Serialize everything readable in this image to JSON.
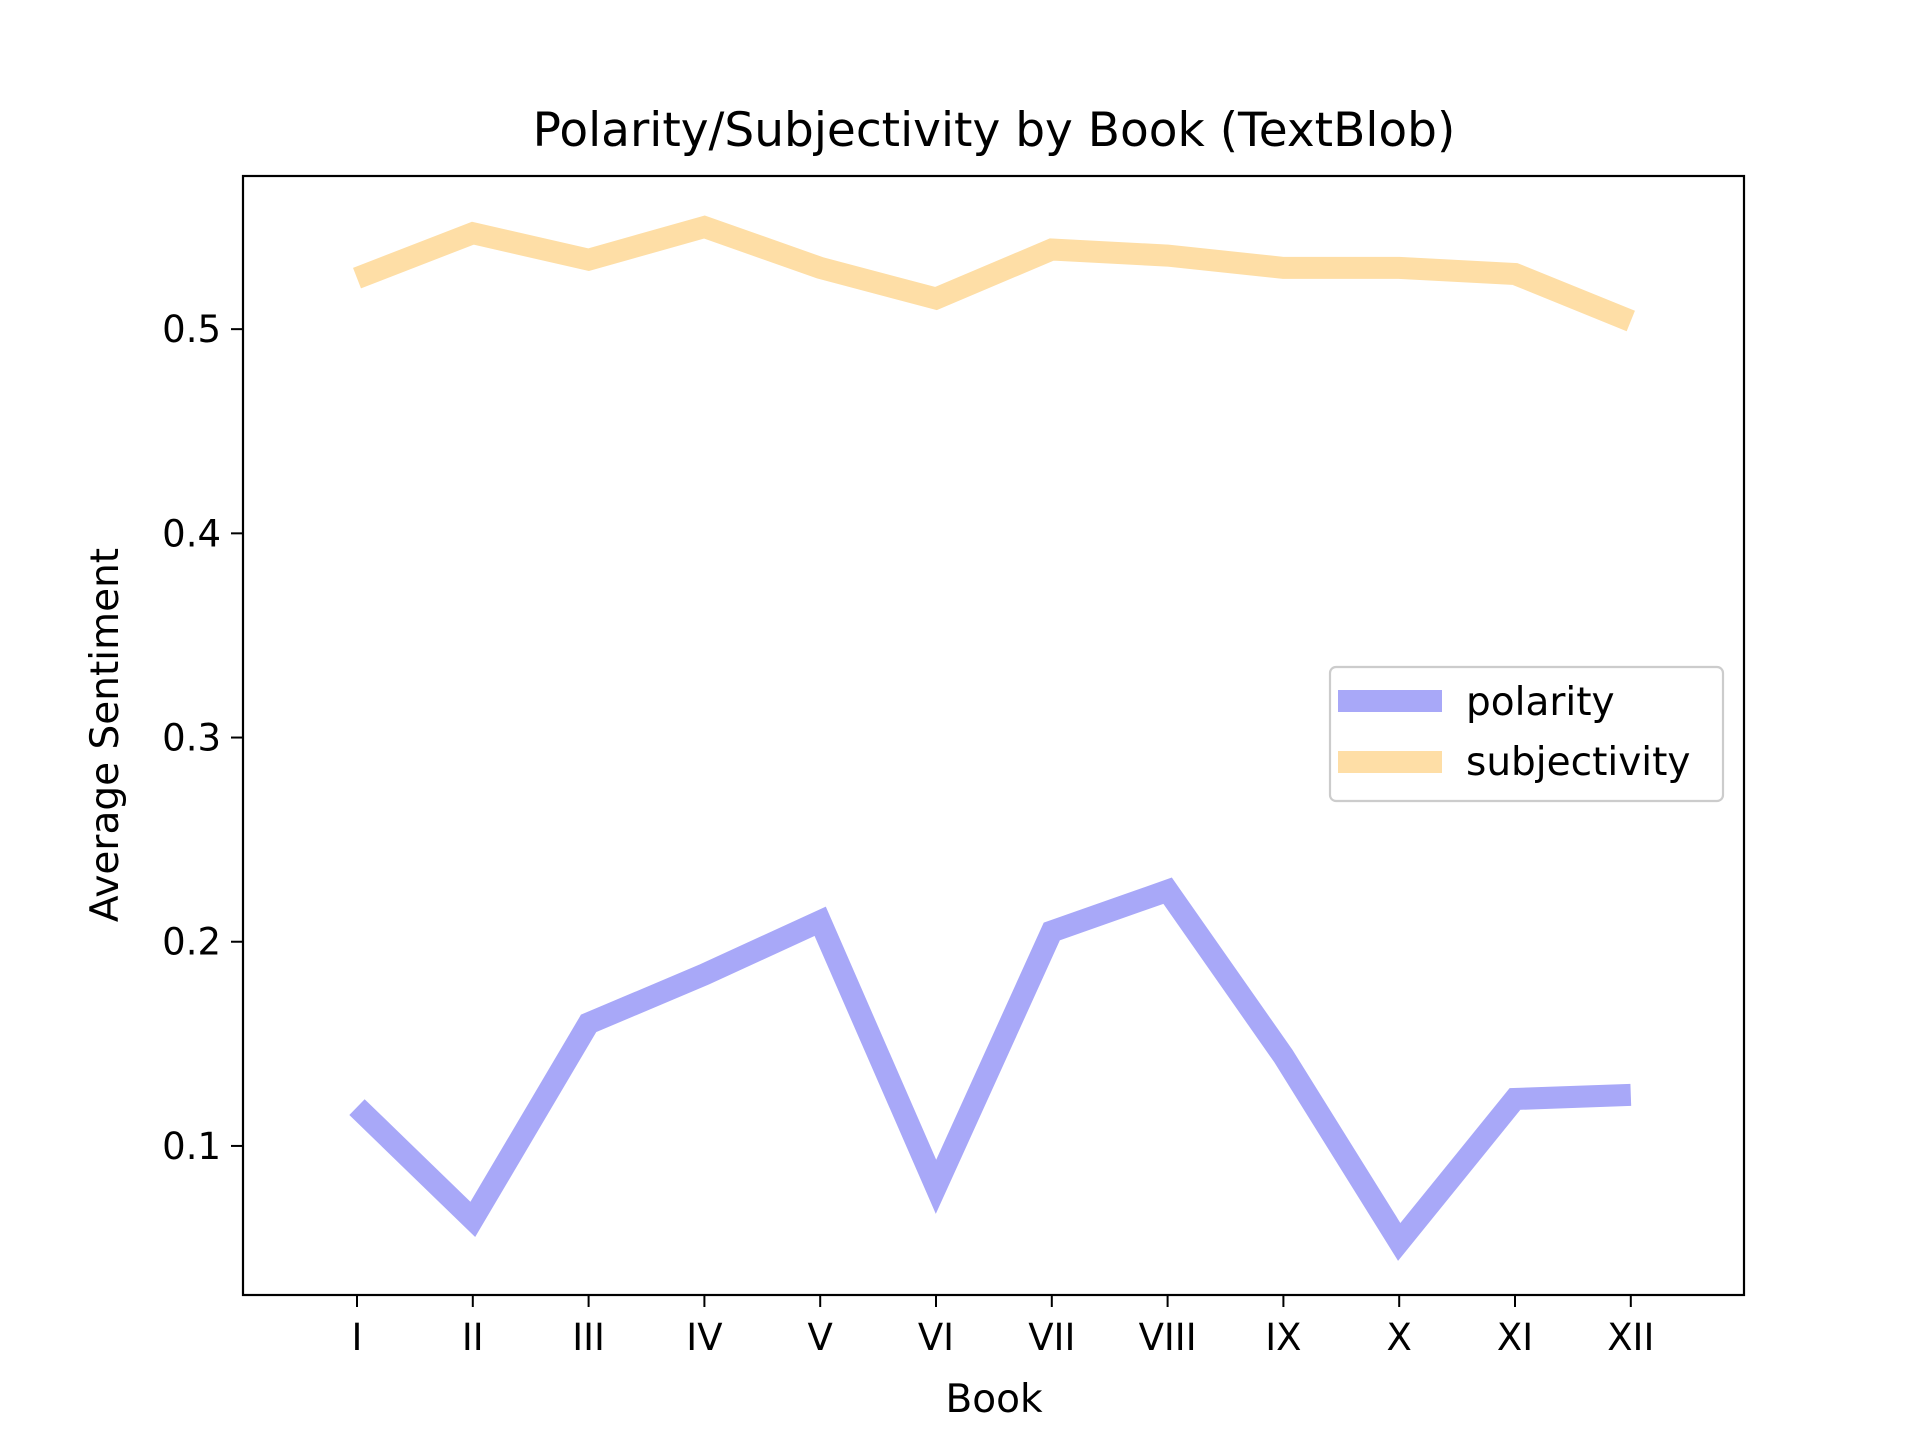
{
  "chart_data": {
    "type": "line",
    "title": "Polarity/Subjectivity by Book (TextBlob)",
    "xlabel": "Book",
    "ylabel": "Average Sentiment",
    "categories": [
      "I",
      "II",
      "III",
      "IV",
      "V",
      "VI",
      "VII",
      "VIII",
      "IX",
      "X",
      "XI",
      "XII"
    ],
    "ylim": [
      0.027,
      0.575
    ],
    "yticks": [
      0.1,
      0.2,
      0.3,
      0.4,
      0.5
    ],
    "ytick_labels": [
      "0.1",
      "0.2",
      "0.3",
      "0.4",
      "0.5"
    ],
    "grid": false,
    "legend_position": "center-right",
    "series": [
      {
        "name": "polarity",
        "color": "#a8a8f8",
        "values": [
          0.119,
          0.064,
          0.16,
          0.184,
          0.21,
          0.08,
          0.205,
          0.225,
          0.144,
          0.053,
          0.123,
          0.125
        ]
      },
      {
        "name": "subjectivity",
        "color": "#fedea6",
        "values": [
          0.525,
          0.547,
          0.534,
          0.55,
          0.53,
          0.515,
          0.539,
          0.536,
          0.53,
          0.53,
          0.527,
          0.504
        ]
      }
    ]
  }
}
